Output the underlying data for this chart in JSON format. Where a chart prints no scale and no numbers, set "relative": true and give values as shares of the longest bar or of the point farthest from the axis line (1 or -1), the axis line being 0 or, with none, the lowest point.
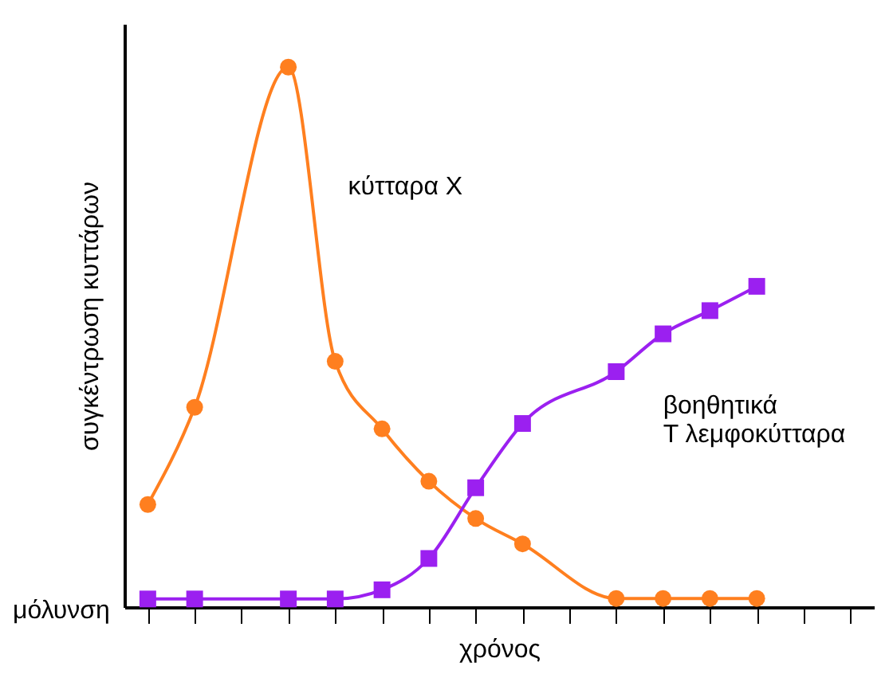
{
  "chart_data": {
    "type": "line",
    "relative": true,
    "xlabel": "χρόνος",
    "ylabel": "συγκέντρωση κυττάρων",
    "annotations": [
      "μόλυνση"
    ],
    "grid": false,
    "categories": [
      null,
      null,
      null,
      null,
      null,
      null,
      null,
      null,
      null,
      null,
      null,
      null,
      null,
      null,
      null,
      null
    ],
    "series": [
      {
        "name": "κύτταρα Χ",
        "color": "#ff7f1f",
        "marker": "circle",
        "values": [
          0.19,
          0.37,
          null,
          1,
          0.455,
          0.33,
          0.233,
          0.164,
          0.117,
          null,
          0.016,
          0.016,
          0.016,
          0.016,
          null,
          null
        ]
      },
      {
        "name": "βοηθητικά Τ λεμφοκύτταρα",
        "color": "#9b20f0",
        "marker": "square",
        "values": [
          0.015,
          0.015,
          null,
          0.015,
          0.015,
          0.032,
          0.09,
          0.221,
          0.34,
          null,
          0.436,
          0.506,
          0.549,
          0.594,
          null,
          null
        ]
      }
    ]
  }
}
